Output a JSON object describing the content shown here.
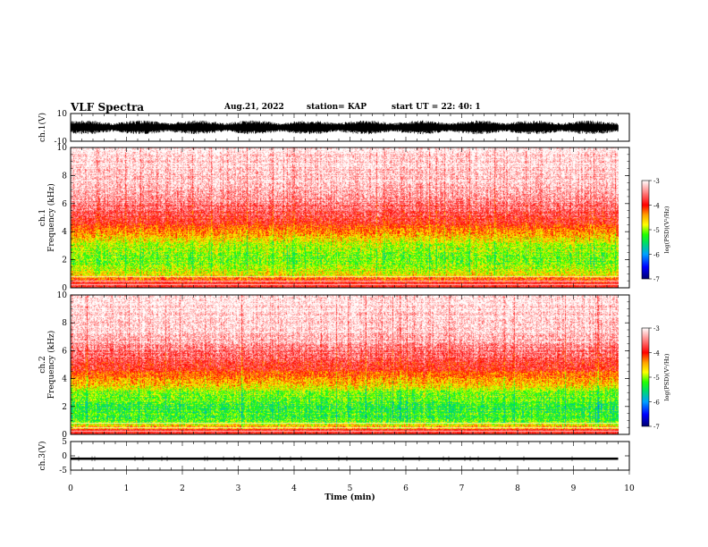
{
  "header": {
    "title": "VLF Spectra",
    "date": "Aug.21, 2022",
    "station": "station= KAP",
    "start": "start  UT  =   22: 40: 1"
  },
  "chart_data": [
    {
      "type": "line",
      "name": "ch1-waveform",
      "ylabel": "ch.1(V)",
      "ylim": [
        -10,
        10
      ],
      "y_tick_labels": [
        "10",
        "-10"
      ],
      "xlim": [
        0,
        10
      ],
      "data_extent_min": 9.8,
      "waveform_range": [
        -5,
        5
      ]
    },
    {
      "type": "heatmap",
      "name": "ch1-spectrogram",
      "ylabel": "ch.1\nFrequency  (kHz)",
      "ylim": [
        0,
        10
      ],
      "y_ticks": [
        0,
        2,
        4,
        6,
        8,
        10
      ],
      "xlim": [
        0,
        10
      ],
      "data_extent_min": 9.8,
      "colorbar": {
        "label": "log(PSD)(V²/Hz)",
        "range": [
          -7,
          -3
        ],
        "ticks": [
          -7,
          -6,
          -5,
          -4,
          -3
        ]
      },
      "band_profile": [
        {
          "freq": 0.5,
          "level": -4.0
        },
        {
          "freq": 1.0,
          "level": -4.8
        },
        {
          "freq": 2.0,
          "level": -5.1
        },
        {
          "freq": 3.0,
          "level": -4.9
        },
        {
          "freq": 4.0,
          "level": -4.3
        },
        {
          "freq": 5.0,
          "level": -3.8
        },
        {
          "freq": 7.0,
          "level": -3.2
        },
        {
          "freq": 10.0,
          "level": -3.0
        }
      ]
    },
    {
      "type": "heatmap",
      "name": "ch2-spectrogram",
      "ylabel": "ch.2\nFrequency  (kHz)",
      "ylim": [
        0,
        10
      ],
      "y_ticks": [
        0,
        2,
        4,
        6,
        8,
        10
      ],
      "xlim": [
        0,
        10
      ],
      "data_extent_min": 9.8,
      "colorbar": {
        "label": "log(PSD)(V²/Hz)",
        "range": [
          -7,
          -3
        ],
        "ticks": [
          -7,
          -6,
          -5,
          -4,
          -3
        ]
      },
      "band_profile": [
        {
          "freq": 0.5,
          "level": -4.5
        },
        {
          "freq": 1.0,
          "level": -5.2
        },
        {
          "freq": 2.0,
          "level": -5.3
        },
        {
          "freq": 3.0,
          "level": -5.0
        },
        {
          "freq": 4.0,
          "level": -4.3
        },
        {
          "freq": 5.0,
          "level": -3.8
        },
        {
          "freq": 7.0,
          "level": -3.2
        },
        {
          "freq": 10.0,
          "level": -3.0
        }
      ]
    },
    {
      "type": "line",
      "name": "ch3-waveform",
      "ylabel": "ch.3(V)",
      "ylim": [
        -5,
        5
      ],
      "y_tick_labels": [
        "5",
        "0",
        "-5"
      ],
      "xlim": [
        0,
        10
      ],
      "data_extent_min": 9.8,
      "level": -1.0,
      "waveform_range": [
        -1.4,
        -0.6
      ]
    }
  ],
  "x_axis": {
    "label": "Time  (min)",
    "ticks": [
      0,
      1,
      2,
      3,
      4,
      5,
      6,
      7,
      8,
      9,
      10
    ]
  },
  "colors": {
    "scale": [
      "#00006e",
      "#0000ff",
      "#00a0ff",
      "#00e060",
      "#22ff00",
      "#ffff00",
      "#ffa000",
      "#ff0000",
      "#ffffff"
    ]
  }
}
